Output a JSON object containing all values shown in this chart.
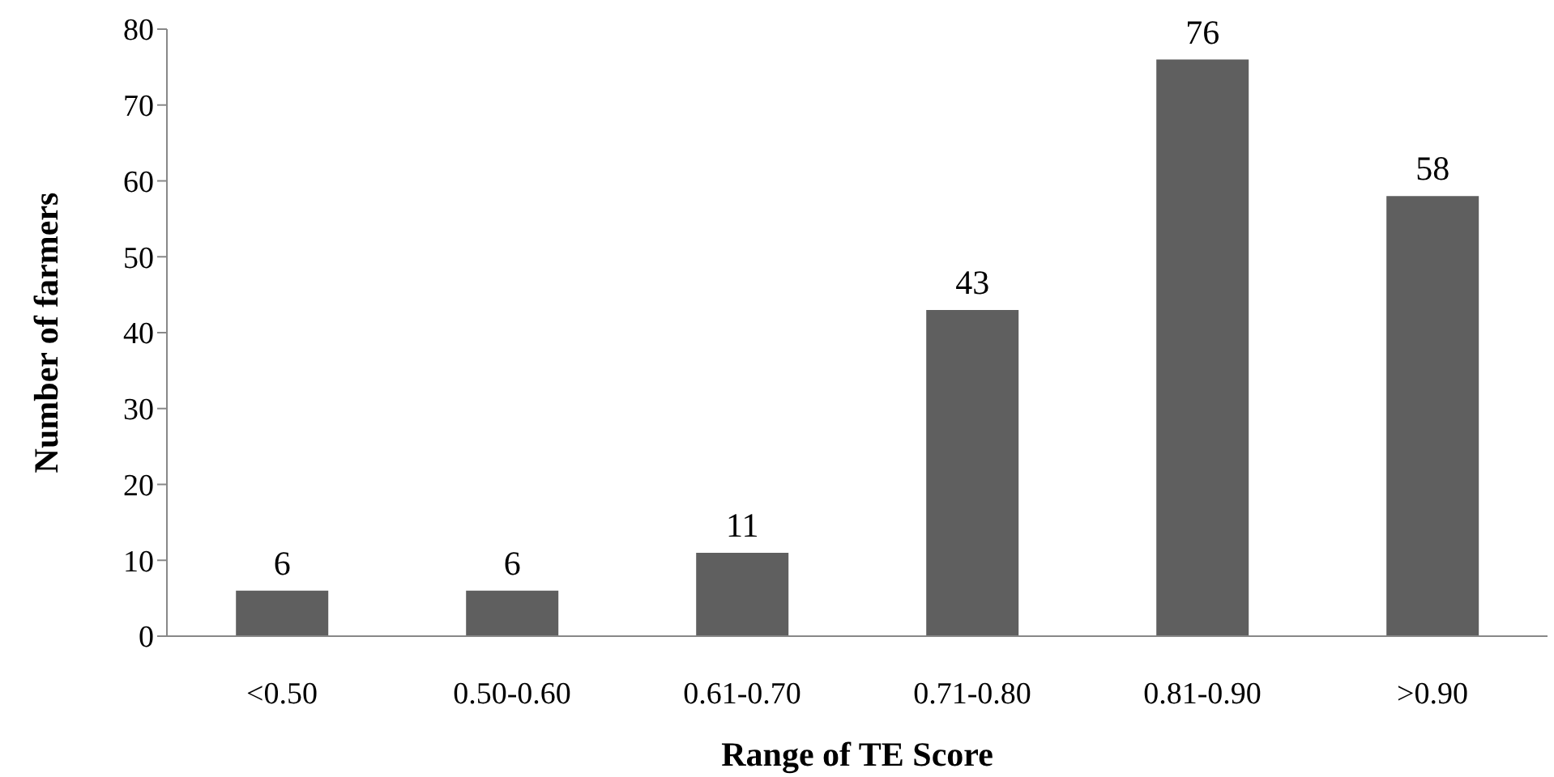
{
  "chart_data": {
    "type": "bar",
    "xlabel": "Range of TE Score",
    "ylabel": "Number of farmers",
    "categories": [
      "<0.50",
      "0.50-0.60",
      "0.61-0.70",
      "0.71-0.80",
      "0.81-0.90",
      ">0.90"
    ],
    "values": [
      6,
      6,
      11,
      43,
      76,
      58
    ],
    "color": "#5f5f5f",
    "ylim": [
      0,
      80
    ],
    "yticks": [
      0,
      10,
      20,
      30,
      40,
      50,
      60,
      70,
      80
    ],
    "grid": false,
    "legend": false,
    "data_labels": true
  }
}
